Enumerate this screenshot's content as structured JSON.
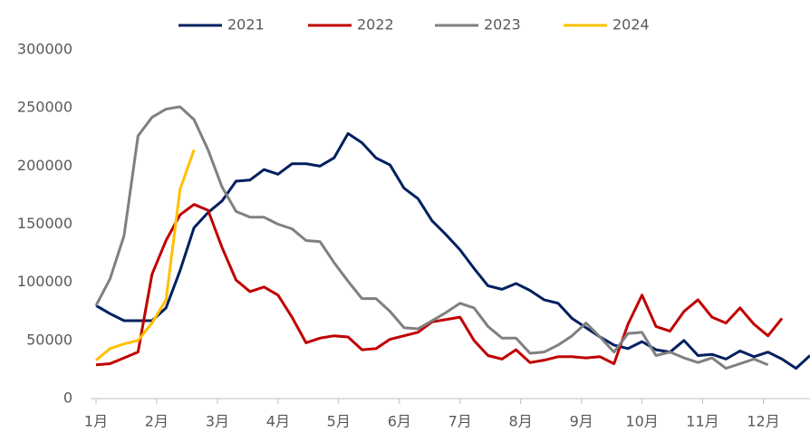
{
  "chart_data": {
    "type": "line",
    "x": [
      1,
      2,
      3,
      4,
      5,
      6,
      7,
      8,
      9,
      10,
      11,
      12,
      13,
      14,
      15,
      16,
      17,
      18,
      19,
      20,
      21,
      22,
      23,
      24,
      25,
      26,
      27,
      28,
      29,
      30,
      31,
      32,
      33,
      34,
      35,
      36,
      37,
      38,
      39,
      40,
      41,
      42,
      43,
      44,
      45,
      46,
      47,
      48,
      49,
      50,
      51,
      52
    ],
    "xlim": [
      1,
      52
    ],
    "xticks": [
      {
        "value": 1,
        "label": "1月"
      },
      {
        "value": 5.33,
        "label": "2月"
      },
      {
        "value": 9.67,
        "label": "3月"
      },
      {
        "value": 14,
        "label": "4月"
      },
      {
        "value": 18.33,
        "label": "5月"
      },
      {
        "value": 22.67,
        "label": "6月"
      },
      {
        "value": 27,
        "label": "7月"
      },
      {
        "value": 31.33,
        "label": "8月"
      },
      {
        "value": 35.67,
        "label": "9月"
      },
      {
        "value": 40,
        "label": "10月"
      },
      {
        "value": 44.33,
        "label": "11月"
      },
      {
        "value": 48.67,
        "label": "12月"
      }
    ],
    "ylim": [
      0,
      300000
    ],
    "yticks": [
      0,
      50000,
      100000,
      150000,
      200000,
      250000,
      300000
    ],
    "legend": "top",
    "series": [
      {
        "name": "2021",
        "color": "#002060",
        "values": [
          80000,
          73000,
          67000,
          67000,
          67000,
          78000,
          110000,
          147000,
          160000,
          170000,
          187000,
          188000,
          197000,
          193000,
          202000,
          202000,
          200000,
          207000,
          228000,
          220000,
          207000,
          201000,
          181000,
          172000,
          153000,
          141000,
          128000,
          112000,
          97000,
          94000,
          99000,
          93000,
          85000,
          82000,
          69000,
          61000,
          53000,
          46000,
          43000,
          49000,
          42000,
          40000,
          50000,
          37000,
          38000,
          34000,
          41000,
          36000,
          40000,
          34000,
          26000,
          37000
        ]
      },
      {
        "name": "2022",
        "color": "#c00000",
        "values": [
          29000,
          30000,
          35000,
          40000,
          107000,
          136000,
          158000,
          167000,
          162000,
          130000,
          102000,
          92000,
          96000,
          89000,
          70000,
          48000,
          52000,
          54000,
          53000,
          42000,
          43000,
          51000,
          54000,
          57000,
          66000,
          68000,
          70000,
          50000,
          37000,
          34000,
          42000,
          31000,
          33000,
          36000,
          36000,
          35000,
          36000,
          30000,
          64000,
          89000,
          62000,
          58000,
          75000,
          85000,
          70000,
          65000,
          78000,
          64000,
          54000,
          69000,
          null,
          null
        ]
      },
      {
        "name": "2023",
        "color": "#808080",
        "values": [
          80000,
          103000,
          140000,
          226000,
          242000,
          249000,
          251000,
          240000,
          214000,
          182000,
          161000,
          156000,
          156000,
          150000,
          146000,
          136000,
          135000,
          117000,
          101000,
          86000,
          86000,
          75000,
          61000,
          60000,
          67000,
          74000,
          82000,
          78000,
          62000,
          52000,
          52000,
          39000,
          40000,
          46000,
          54000,
          65000,
          53000,
          40000,
          56000,
          57000,
          37000,
          40000,
          35000,
          31000,
          35000,
          26000,
          30000,
          34000,
          29000,
          null,
          null,
          null
        ]
      },
      {
        "name": "2024",
        "color": "#ffc000",
        "values": [
          33000,
          43000,
          47000,
          50000,
          65000,
          85000,
          180000,
          214000,
          null,
          null,
          null,
          null,
          null,
          null,
          null,
          null,
          null,
          null,
          null,
          null,
          null,
          null,
          null,
          null,
          null,
          null,
          null,
          null,
          null,
          null,
          null,
          null,
          null,
          null,
          null,
          null,
          null,
          null,
          null,
          null,
          null,
          null,
          null,
          null,
          null,
          null,
          null,
          null,
          null,
          null,
          null,
          null
        ]
      }
    ]
  }
}
